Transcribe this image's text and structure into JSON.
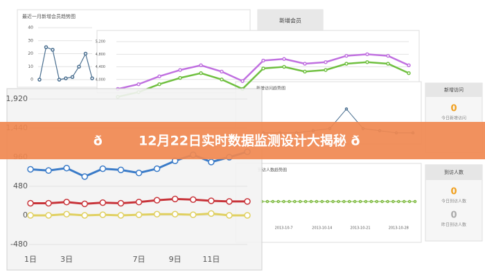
{
  "banner": {
    "title": "ð 12月22日实时数据监测设计大揭秘 ð"
  },
  "panels": {
    "new_members": "新增会员",
    "visits": {
      "title": "新增访问",
      "value": "0",
      "caption": "今日新增访问"
    },
    "arrivals": {
      "title": "到访人数",
      "value": "0",
      "caption": "今日到访人数",
      "yesterday_value": "0",
      "yesterday_caption": "昨日到访人数"
    }
  },
  "charts": [
    {
      "type": "line",
      "categories": [
        "1日",
        null,
        "3日",
        null,
        null,
        null,
        "7日",
        null,
        "9日",
        null,
        "11日",
        null,
        null
      ],
      "ylim": [
        -480,
        1920
      ],
      "yticks": [
        {
          "value": 1920,
          "label": "1,920"
        },
        {
          "value": 1440,
          "label": "1,440"
        },
        960,
        480,
        0,
        -480
      ],
      "series": [
        {
          "color": "#3a7bc8",
          "values": [
            760,
            740,
            780,
            640,
            770,
            750,
            700,
            770,
            900,
            1000,
            880,
            960,
            1050
          ]
        },
        {
          "color": "#c8343a",
          "values": [
            200,
            200,
            220,
            190,
            210,
            200,
            220,
            250,
            270,
            260,
            240,
            230,
            230
          ]
        },
        {
          "color": "#e0d060",
          "values": [
            0,
            0,
            20,
            0,
            10,
            0,
            10,
            20,
            20,
            10,
            30,
            0,
            0
          ]
        }
      ]
    },
    {
      "type": "line",
      "title": "最近一月新增会员趋势图",
      "ylim": [
        0,
        40
      ],
      "yticks": [
        0,
        10,
        20,
        30,
        40
      ],
      "series": [
        {
          "color": "#4a6f90",
          "values": [
            0,
            25,
            23,
            0,
            1,
            2,
            10,
            20,
            1
          ]
        }
      ]
    },
    {
      "type": "line",
      "ylim": [
        3600,
        5400
      ],
      "yticks": [
        {
          "value": 4000,
          "label": "4,000"
        },
        {
          "value": 4400,
          "label": "4,400"
        },
        {
          "value": 4800,
          "label": "4,800"
        },
        {
          "value": 5200,
          "label": "5,200"
        }
      ],
      "series": [
        {
          "color": "#c070e0",
          "values": [
            3700,
            3850,
            4100,
            4300,
            4450,
            4250,
            3950,
            4600,
            4650,
            4500,
            4550,
            4750,
            4800,
            4750,
            4450
          ]
        },
        {
          "color": "#70c040",
          "values": [
            3450,
            3600,
            3850,
            4050,
            4200,
            4000,
            3700,
            4350,
            4400,
            4250,
            4300,
            4500,
            4550,
            4500,
            4200
          ]
        }
      ]
    },
    {
      "type": "line",
      "title": "新增访问趋势图",
      "ylim": [
        0,
        15
      ],
      "series": [
        {
          "color": "#4a6f90",
          "values": [
            1,
            1,
            1,
            2,
            3,
            12,
            3,
            2,
            1,
            1
          ]
        }
      ]
    },
    {
      "type": "line",
      "title": "到访人数趋势图",
      "ylim": [
        0,
        10
      ],
      "categories": [
        null,
        null,
        null,
        null,
        "2013-10-7",
        null,
        null,
        null,
        null,
        null,
        null,
        "2013-10-14",
        null,
        null,
        null,
        null,
        null,
        null,
        "2013-10-21",
        null,
        null,
        null,
        null,
        null,
        null,
        "2013-10-28",
        null,
        null,
        null
      ],
      "series": [
        {
          "color": "#7ab83a",
          "values": [
            0,
            0,
            0,
            0,
            0,
            0,
            0,
            0,
            0,
            0,
            0,
            0,
            0,
            0,
            0,
            0,
            0,
            0,
            0,
            0,
            0,
            0,
            0,
            0,
            0,
            0,
            0,
            0,
            0
          ]
        }
      ]
    }
  ]
}
